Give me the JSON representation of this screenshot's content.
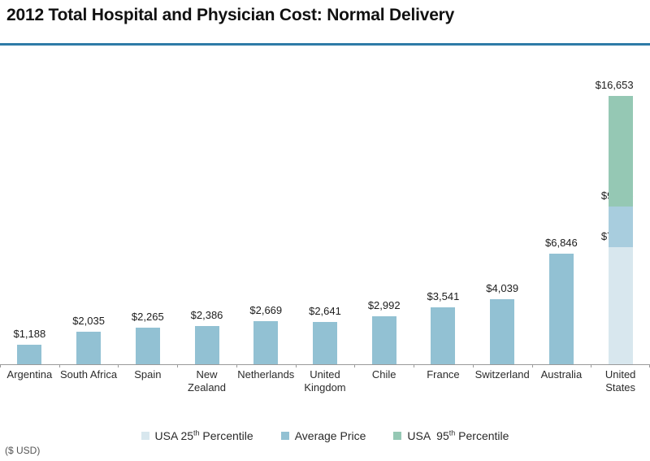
{
  "title": "2012 Total Hospital and Physician Cost: Normal Delivery",
  "footnote": "($ USD)",
  "colors": {
    "average_price": "#92c1d3",
    "usa_25th": "#d8e7ee",
    "usa_average_segment": "#a8cdde",
    "usa_95th": "#95c8b4",
    "title_rule": "#2e7ba7",
    "axis": "#9a9a9a"
  },
  "legend": [
    {
      "color": "usa_25th",
      "prefix": "USA 25",
      "sup": "th",
      "suffix": " Percentile"
    },
    {
      "color": "average_price",
      "prefix": "Average Price",
      "sup": "",
      "suffix": ""
    },
    {
      "color": "usa_95th",
      "prefix": "USA  95",
      "sup": "th",
      "suffix": " Percentile"
    }
  ],
  "chart_data": {
    "type": "bar",
    "title": "2012 Total Hospital and Physician Cost: Normal Delivery",
    "unit": "$ USD",
    "ylim": [
      0,
      16653
    ],
    "grid": false,
    "legend_position": "bottom",
    "categories": [
      "Argentina",
      "South Africa",
      "Spain",
      "New Zealand",
      "Netherlands",
      "United Kingdom",
      "Chile",
      "France",
      "Switzerland",
      "Australia",
      "United States"
    ],
    "series": [
      {
        "name": "Average Price",
        "values": [
          1188,
          2035,
          2265,
          2386,
          2669,
          2641,
          2992,
          3541,
          4039,
          6846,
          9775
        ]
      },
      {
        "name": "USA 25th Percentile",
        "values": [
          null,
          null,
          null,
          null,
          null,
          null,
          null,
          null,
          null,
          null,
          7262
        ]
      },
      {
        "name": "USA 95th Percentile",
        "values": [
          null,
          null,
          null,
          null,
          null,
          null,
          null,
          null,
          null,
          null,
          16653
        ]
      }
    ],
    "bars": [
      {
        "category": "Argentina",
        "category_label": "Argentina",
        "segments": [
          {
            "name": "average-price",
            "to": 1188,
            "color": "average_price",
            "label": "$1,188",
            "label_align": "center"
          }
        ]
      },
      {
        "category": "South Africa",
        "category_label": "South Africa",
        "segments": [
          {
            "name": "average-price",
            "to": 2035,
            "color": "average_price",
            "label": "$2,035",
            "label_align": "center"
          }
        ]
      },
      {
        "category": "Spain",
        "category_label": "Spain",
        "segments": [
          {
            "name": "average-price",
            "to": 2265,
            "color": "average_price",
            "label": "$2,265",
            "label_align": "center"
          }
        ]
      },
      {
        "category": "New Zealand",
        "category_label": "New\nZealand",
        "segments": [
          {
            "name": "average-price",
            "to": 2386,
            "color": "average_price",
            "label": "$2,386",
            "label_align": "center"
          }
        ]
      },
      {
        "category": "Netherlands",
        "category_label": "Netherlands",
        "segments": [
          {
            "name": "average-price",
            "to": 2669,
            "color": "average_price",
            "label": "$2,669",
            "label_align": "center"
          }
        ]
      },
      {
        "category": "United Kingdom",
        "category_label": "United\nKingdom",
        "segments": [
          {
            "name": "average-price",
            "to": 2641,
            "color": "average_price",
            "label": "$2,641",
            "label_align": "center"
          }
        ]
      },
      {
        "category": "Chile",
        "category_label": "Chile",
        "segments": [
          {
            "name": "average-price",
            "to": 2992,
            "color": "average_price",
            "label": "$2,992",
            "label_align": "center"
          }
        ]
      },
      {
        "category": "France",
        "category_label": "France",
        "segments": [
          {
            "name": "average-price",
            "to": 3541,
            "color": "average_price",
            "label": "$3,541",
            "label_align": "center"
          }
        ]
      },
      {
        "category": "Switzerland",
        "category_label": "Switzerland",
        "segments": [
          {
            "name": "average-price",
            "to": 4039,
            "color": "average_price",
            "label": "$4,039",
            "label_align": "center"
          }
        ]
      },
      {
        "category": "Australia",
        "category_label": "Australia",
        "segments": [
          {
            "name": "average-price",
            "to": 6846,
            "color": "average_price",
            "label": "$6,846",
            "label_align": "center"
          }
        ]
      },
      {
        "category": "United States",
        "category_label": "United\nStates",
        "segments": [
          {
            "name": "usa-25th-percentile",
            "to": 7262,
            "color": "usa_25th",
            "label": "$7,262",
            "label_align": "right"
          },
          {
            "name": "usa-average-price",
            "to": 9775,
            "color": "usa_average_segment",
            "label": "$9,775",
            "label_align": "right"
          },
          {
            "name": "usa-95th-percentile",
            "to": 16653,
            "color": "usa_95th",
            "label": "$16,653",
            "label_align": "right"
          }
        ]
      }
    ]
  }
}
